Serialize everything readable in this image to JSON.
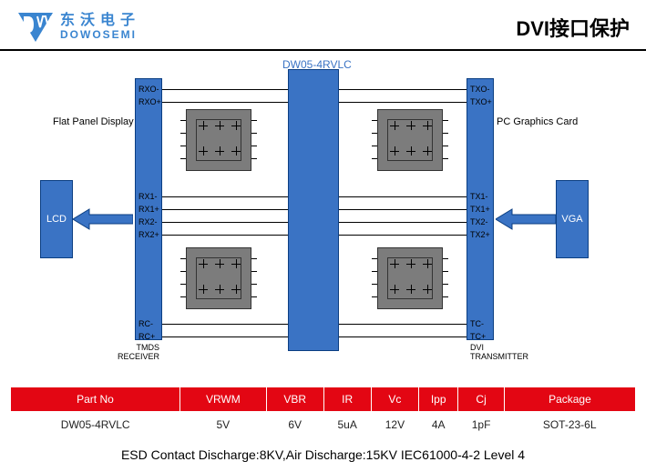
{
  "header": {
    "logo_cn": "东沃电子",
    "logo_en": "DOWOSEMI",
    "title": "DVI接口保护",
    "logo_color": "#3a85d0"
  },
  "diagram": {
    "part_label": "DW05-4RVLC",
    "flat_panel_label": "Flat Panel Display",
    "pc_card_label": "PC Graphics Card",
    "lcd_label": "LCD",
    "vga_label": "VGA",
    "tmds_rx_label": "TMDS\nRECEIVER",
    "dvi_tx_label": "DVI\nTRANSMITTER",
    "box_color": "#3a73c4",
    "box_border": "#0b3e82",
    "chip_color": "#7c7c7c",
    "left_signals_top": [
      "RXO-",
      "RXO+"
    ],
    "left_signals_mid": [
      "RX1-",
      "RX1+",
      "RX2-",
      "RX2+"
    ],
    "left_signals_bot": [
      "RC-",
      "RC+"
    ],
    "right_signals_top": [
      "TXO-",
      "TXO+"
    ],
    "right_signals_mid": [
      "TX1-",
      "TX1+",
      "TX2-",
      "TX2+"
    ],
    "right_signals_bot": [
      "TC-",
      "TC+"
    ]
  },
  "table": {
    "header_bg": "#e30613",
    "header_color": "#ffffff",
    "columns": [
      "Part No",
      "VRWM",
      "VBR",
      "IR",
      "Vc",
      "Ipp",
      "Cj",
      "Package"
    ],
    "row": [
      "DW05-4RVLC",
      "5V",
      "6V",
      "5uA",
      "12V",
      "4A",
      "1pF",
      "SOT-23-6L"
    ]
  },
  "footer": {
    "text": "ESD Contact Discharge:8KV,Air Discharge:15KV  IEC61000-4-2 Level 4"
  }
}
